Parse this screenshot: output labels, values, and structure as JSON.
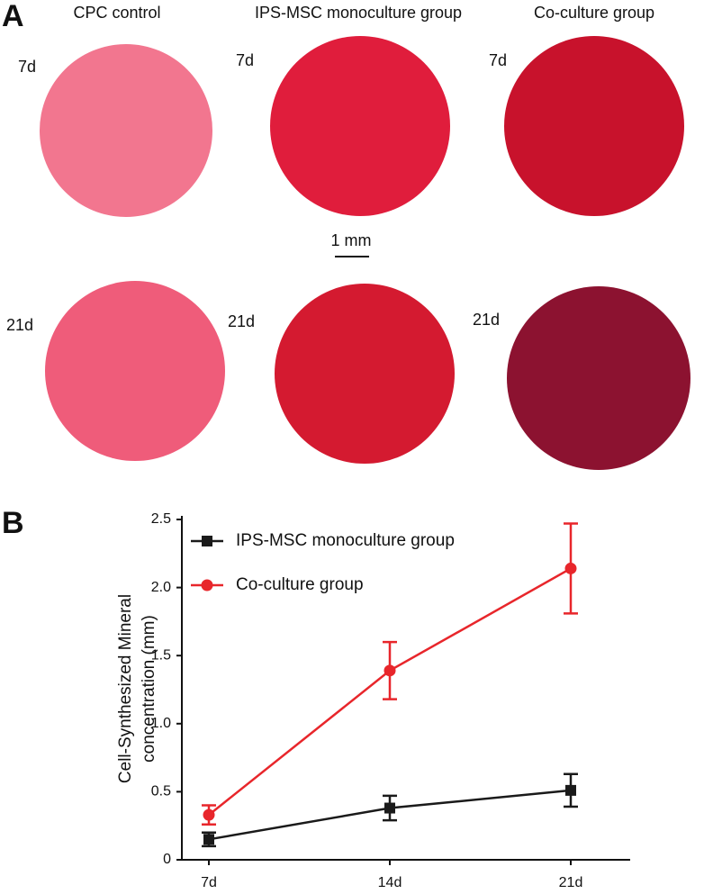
{
  "panel_a": {
    "label": "A",
    "columns": [
      "CPC control",
      "IPS-MSC monoculture group",
      "Co-culture group"
    ],
    "row_labels": [
      [
        "7d",
        "7d",
        "7d"
      ],
      [
        "21d",
        "21d",
        "21d"
      ]
    ],
    "scale_bar": "1 mm"
  },
  "panel_b": {
    "label": "B"
  },
  "chart_data": {
    "type": "line",
    "y_label": [
      "Cell-Synthesized Mineral",
      "concentration (mm)"
    ],
    "categories": [
      "7d",
      "14d",
      "21d"
    ],
    "series": [
      {
        "name": "IPS-MSC monoculture group",
        "color": "#1a1a1a",
        "marker": "square",
        "values": [
          0.15,
          0.38,
          0.51
        ],
        "errors": [
          0.05,
          0.09,
          0.12
        ]
      },
      {
        "name": "Co-culture group",
        "color": "#e8262b",
        "marker": "circle",
        "values": [
          0.33,
          1.39,
          2.14
        ],
        "errors": [
          0.07,
          0.21,
          0.33
        ]
      }
    ],
    "ylim": [
      0,
      2.5
    ],
    "yticks": [
      0,
      0.5,
      {
        "value": 1,
        "label": "1.0"
      },
      1.5,
      {
        "value": 2,
        "label": "2.0"
      },
      2.5
    ],
    "legend": "upper left"
  }
}
